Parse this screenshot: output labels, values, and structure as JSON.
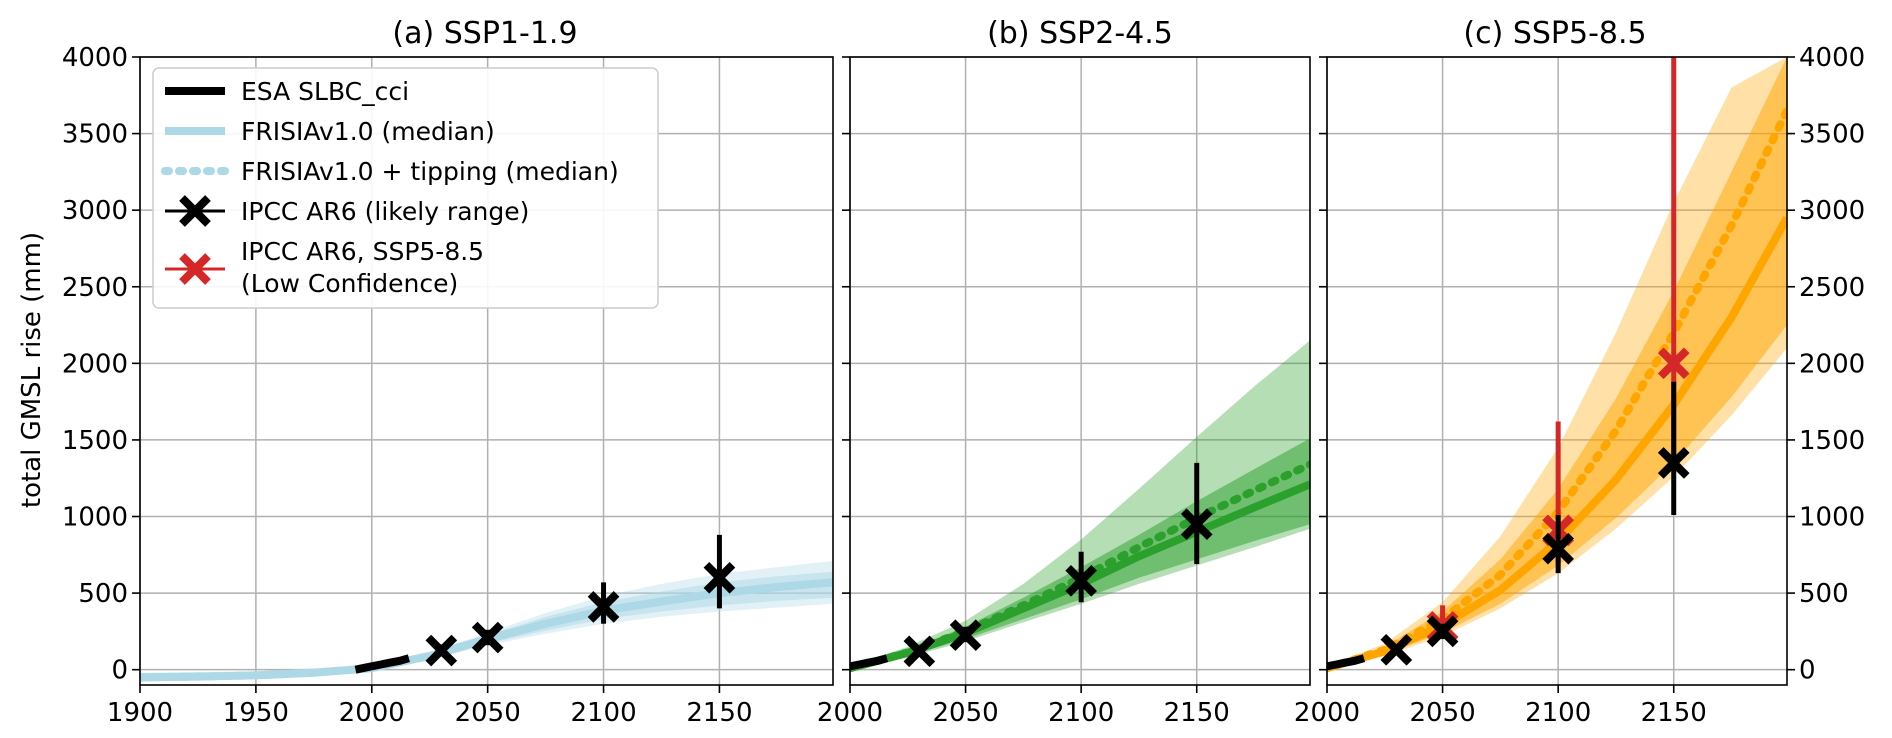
{
  "chart_data": {
    "type": "line",
    "ylabel": "total GMSL rise (mm)",
    "ylim": [
      -100,
      4000
    ],
    "yticks": [
      0,
      500,
      1000,
      1500,
      2000,
      2500,
      3000,
      3500,
      4000
    ],
    "legend": {
      "placement": "top-left",
      "entries": [
        {
          "label": "ESA SLBC_cci",
          "style": "thick-line",
          "color": "#000000"
        },
        {
          "label": "FRISIAv1.0 (median)",
          "style": "line",
          "color": "#add8e6"
        },
        {
          "label": "FRISIAv1.0 + tipping (median)",
          "style": "dotted-line",
          "color": "#add8e6"
        },
        {
          "label": "IPCC AR6 (likely range)",
          "style": "cross-errorbar",
          "color": "#000000"
        },
        {
          "label": "IPCC AR6, SSP5-8.5",
          "label2": "(Low Confidence)",
          "style": "cross-errorbar",
          "color": "#d62728"
        }
      ]
    },
    "observations": {
      "name": "ESA SLBC_cci",
      "x": [
        1993,
        1996,
        2000,
        2004,
        2008,
        2012,
        2016
      ],
      "y": [
        0,
        10,
        22,
        34,
        46,
        58,
        75
      ]
    },
    "panels": [
      {
        "title": "(a) SSP1-1.9",
        "color": "#add8e6",
        "xlim": [
          1900,
          2199
        ],
        "xticks": [
          1900,
          1950,
          2000,
          2050,
          2100,
          2150
        ],
        "median": {
          "x": [
            1900,
            1925,
            1950,
            1975,
            2000,
            2025,
            2050,
            2075,
            2100,
            2125,
            2150,
            2175,
            2199
          ],
          "y": [
            -50,
            -45,
            -37,
            -20,
            10,
            90,
            200,
            300,
            385,
            445,
            500,
            540,
            570
          ]
        },
        "tipping": {
          "x": [
            1900,
            1925,
            1950,
            1975,
            2000,
            2025,
            2050,
            2075,
            2100,
            2125,
            2150,
            2175,
            2199
          ],
          "y": [
            -50,
            -45,
            -37,
            -20,
            10,
            90,
            200,
            300,
            385,
            445,
            500,
            540,
            570
          ]
        },
        "inner_band": {
          "x": [
            1900,
            1950,
            2000,
            2025,
            2050,
            2075,
            2100,
            2125,
            2150,
            2175,
            2199
          ],
          "low": [
            -70,
            -55,
            0,
            75,
            170,
            255,
            330,
            380,
            420,
            450,
            470
          ],
          "high": [
            -30,
            -20,
            20,
            105,
            225,
            345,
            440,
            510,
            570,
            610,
            640
          ]
        },
        "outer_band": {
          "x": [
            1900,
            1950,
            2000,
            2025,
            2050,
            2075,
            2100,
            2125,
            2150,
            2175,
            2199
          ],
          "low": [
            -80,
            -60,
            -10,
            65,
            160,
            235,
            300,
            345,
            380,
            405,
            430
          ],
          "high": [
            -20,
            -10,
            30,
            115,
            240,
            370,
            480,
            560,
            625,
            670,
            710
          ]
        },
        "ipcc": [
          {
            "x": 2030,
            "y": 125,
            "low": 90,
            "high": 165
          },
          {
            "x": 2050,
            "y": 210,
            "low": 160,
            "high": 260
          },
          {
            "x": 2100,
            "y": 410,
            "low": 300,
            "high": 570
          },
          {
            "x": 2150,
            "y": 600,
            "low": 400,
            "high": 880
          }
        ],
        "ipcc_lowconf": []
      },
      {
        "title": "(b) SSP2-4.5",
        "color": "#2ca02c",
        "xlim": [
          2000,
          2199
        ],
        "xticks": [
          2000,
          2050,
          2100,
          2150
        ],
        "median": {
          "x": [
            2000,
            2025,
            2050,
            2075,
            2100,
            2125,
            2150,
            2175,
            2199
          ],
          "y": [
            10,
            110,
            240,
            400,
            560,
            740,
            900,
            1060,
            1210
          ]
        },
        "tipping": {
          "x": [
            2000,
            2025,
            2050,
            2075,
            2100,
            2125,
            2150,
            2175,
            2199
          ],
          "y": [
            10,
            112,
            250,
            420,
            600,
            800,
            990,
            1170,
            1340
          ]
        },
        "inner_band": {
          "x": [
            2000,
            2025,
            2050,
            2075,
            2100,
            2125,
            2150,
            2175,
            2199
          ],
          "low": [
            5,
            90,
            200,
            330,
            460,
            600,
            720,
            840,
            950
          ],
          "high": [
            15,
            130,
            280,
            470,
            670,
            880,
            1100,
            1310,
            1510
          ]
        },
        "outer_band": {
          "x": [
            2000,
            2025,
            2050,
            2075,
            2100,
            2125,
            2150,
            2175,
            2199
          ],
          "low": [
            0,
            80,
            185,
            310,
            430,
            560,
            680,
            800,
            920
          ],
          "high": [
            20,
            150,
            320,
            560,
            850,
            1180,
            1520,
            1850,
            2150
          ]
        },
        "ipcc": [
          {
            "x": 2030,
            "y": 120,
            "low": 95,
            "high": 150
          },
          {
            "x": 2050,
            "y": 225,
            "low": 180,
            "high": 280
          },
          {
            "x": 2100,
            "y": 580,
            "low": 440,
            "high": 770
          },
          {
            "x": 2150,
            "y": 950,
            "low": 690,
            "high": 1350
          }
        ],
        "ipcc_lowconf": []
      },
      {
        "title": "(c) SSP5-8.5",
        "color": "#ffa500",
        "xlim": [
          2000,
          2199
        ],
        "xticks": [
          2000,
          2050,
          2100,
          2150
        ],
        "median": {
          "x": [
            2000,
            2025,
            2050,
            2075,
            2100,
            2125,
            2150,
            2175,
            2199
          ],
          "y": [
            10,
            120,
            290,
            520,
            840,
            1240,
            1730,
            2300,
            2950
          ]
        },
        "tipping": {
          "x": [
            2000,
            2025,
            2050,
            2075,
            2100,
            2125,
            2150,
            2175,
            2199
          ],
          "y": [
            10,
            130,
            330,
            620,
            1030,
            1560,
            2200,
            2900,
            3650
          ]
        },
        "inner_band": {
          "x": [
            2000,
            2025,
            2050,
            2075,
            2100,
            2125,
            2150,
            2175,
            2199
          ],
          "low": [
            5,
            100,
            240,
            430,
            680,
            990,
            1350,
            1780,
            2250
          ],
          "high": [
            15,
            150,
            380,
            720,
            1180,
            1770,
            2470,
            3250,
            4000
          ]
        },
        "outer_band": {
          "x": [
            2000,
            2025,
            2050,
            2075,
            2100,
            2125,
            2150,
            2175,
            2199
          ],
          "low": [
            0,
            90,
            220,
            400,
            630,
            920,
            1260,
            1660,
            2100
          ],
          "high": [
            20,
            170,
            440,
            870,
            1450,
            2200,
            3050,
            3800,
            4000
          ]
        },
        "ipcc": [
          {
            "x": 2030,
            "y": 130,
            "low": 100,
            "high": 160
          },
          {
            "x": 2050,
            "y": 250,
            "low": 200,
            "high": 300
          },
          {
            "x": 2100,
            "y": 790,
            "low": 630,
            "high": 1010
          },
          {
            "x": 2150,
            "y": 1350,
            "low": 1010,
            "high": 1880
          }
        ],
        "ipcc_lowconf": [
          {
            "x": 2050,
            "y": 280,
            "low": 200,
            "high": 420
          },
          {
            "x": 2100,
            "y": 910,
            "low": 700,
            "high": 1620
          },
          {
            "x": 2150,
            "y": 2000,
            "low": 1300,
            "high": 4100
          }
        ]
      }
    ]
  }
}
